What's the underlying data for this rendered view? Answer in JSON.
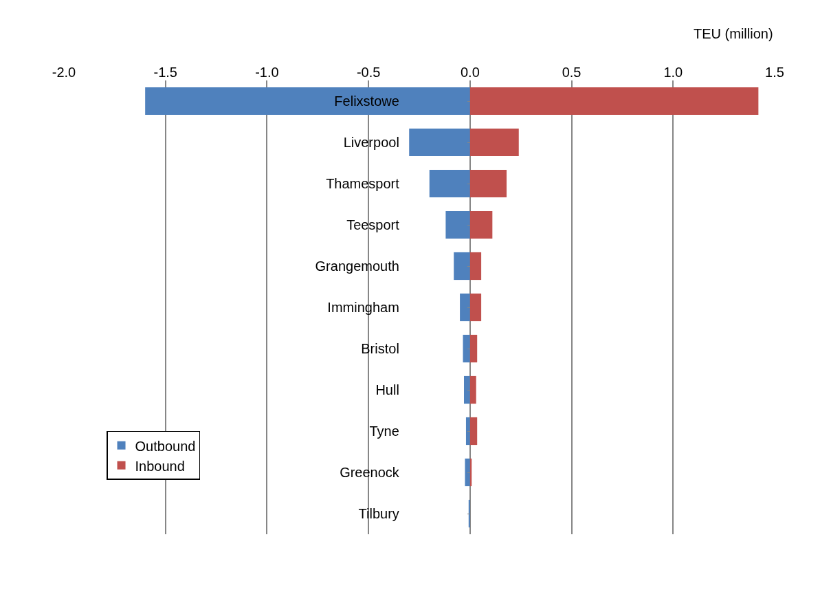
{
  "chart_data": {
    "type": "bar",
    "orientation": "horizontal",
    "stacked": true,
    "xlabel": "TEU (million)",
    "categories": [
      "Felixstowe",
      "Liverpool",
      "Thamesport",
      "Teesport",
      "Grangemouth",
      "Immingham",
      "Bristol",
      "Hull",
      "Tyne",
      "Greenock",
      "Tilbury"
    ],
    "series": [
      {
        "name": "Outbound",
        "color": "#4f81bd",
        "values": [
          -1.6,
          -0.3,
          -0.2,
          -0.12,
          -0.08,
          -0.05,
          -0.035,
          -0.03,
          -0.02,
          -0.025,
          -0.007
        ]
      },
      {
        "name": "Inbound",
        "color": "#c0504d",
        "values": [
          1.42,
          0.24,
          0.18,
          0.11,
          0.055,
          0.055,
          0.035,
          0.03,
          0.035,
          0.008,
          null
        ]
      }
    ],
    "xlim": [
      -2.0,
      1.5
    ],
    "xticks": [
      {
        "value": -2.0,
        "label": "-2.0"
      },
      {
        "value": -1.5,
        "label": "-1.5"
      },
      {
        "value": -1.0,
        "label": "-1.0"
      },
      {
        "value": -0.5,
        "label": "-0.5"
      },
      {
        "value": 0,
        "label": "0.0"
      },
      {
        "value": 0.5,
        "label": "0.5"
      },
      {
        "value": 1.0,
        "label": "1.0"
      },
      {
        "value": 1.5,
        "label": "1.5"
      }
    ],
    "grid": "x",
    "legend": "bottom left"
  }
}
